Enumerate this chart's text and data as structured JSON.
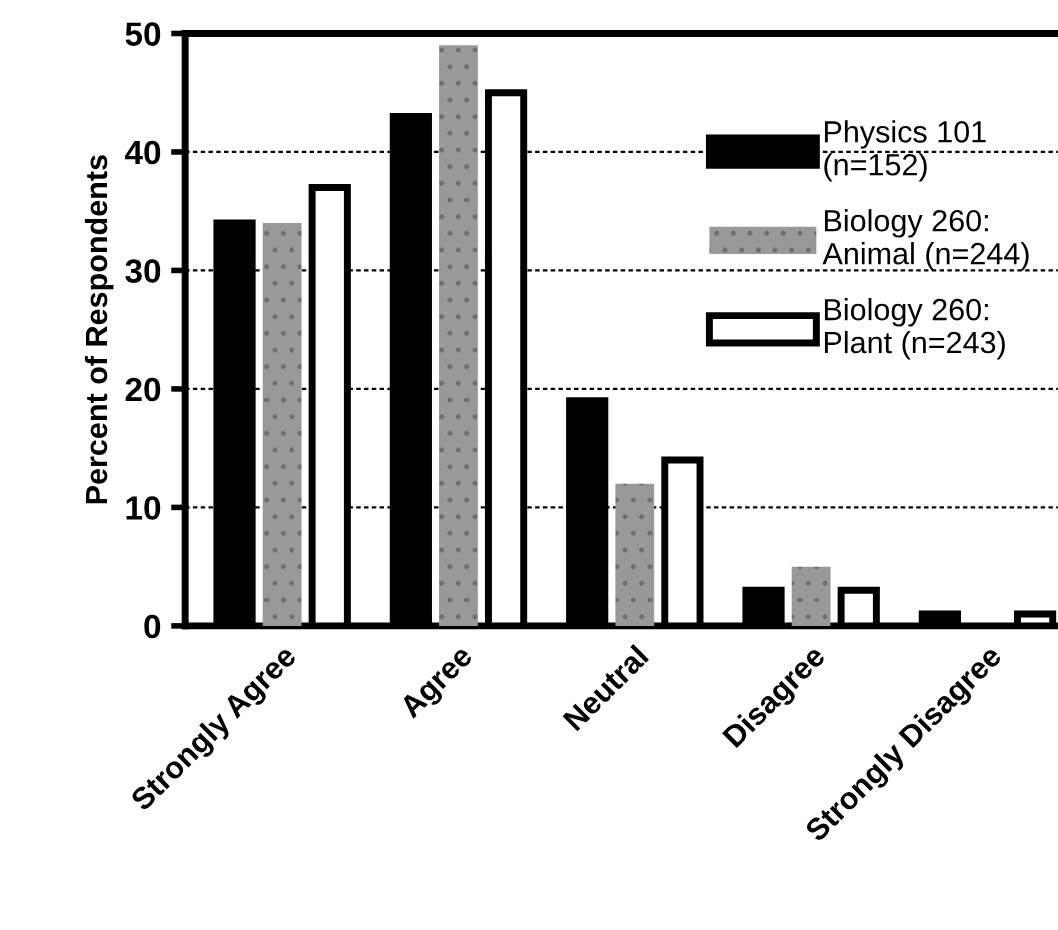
{
  "chart_data": {
    "type": "bar",
    "ylabel": "Percent of Respondents",
    "categories": [
      "Strongly Agree",
      "Agree",
      "Neutral",
      "Disagree",
      "Strongly Disagree"
    ],
    "series": [
      {
        "name": "Physics 101\n(n=152)",
        "color": "#000000",
        "values": [
          34,
          43,
          19,
          3,
          1
        ]
      },
      {
        "name": "Biology 260:\nAnimal (n=244)",
        "color": "#999999",
        "values": [
          34,
          49,
          12,
          5,
          0
        ]
      },
      {
        "name": "Biology 260:\nPlant (n=243)",
        "color": "#ffffff",
        "values": [
          37,
          45,
          14,
          3,
          1
        ]
      }
    ],
    "ylim": [
      0,
      50
    ],
    "yticks": [
      0,
      10,
      20,
      30,
      40,
      50
    ],
    "grid": "y",
    "legend": "top right"
  }
}
